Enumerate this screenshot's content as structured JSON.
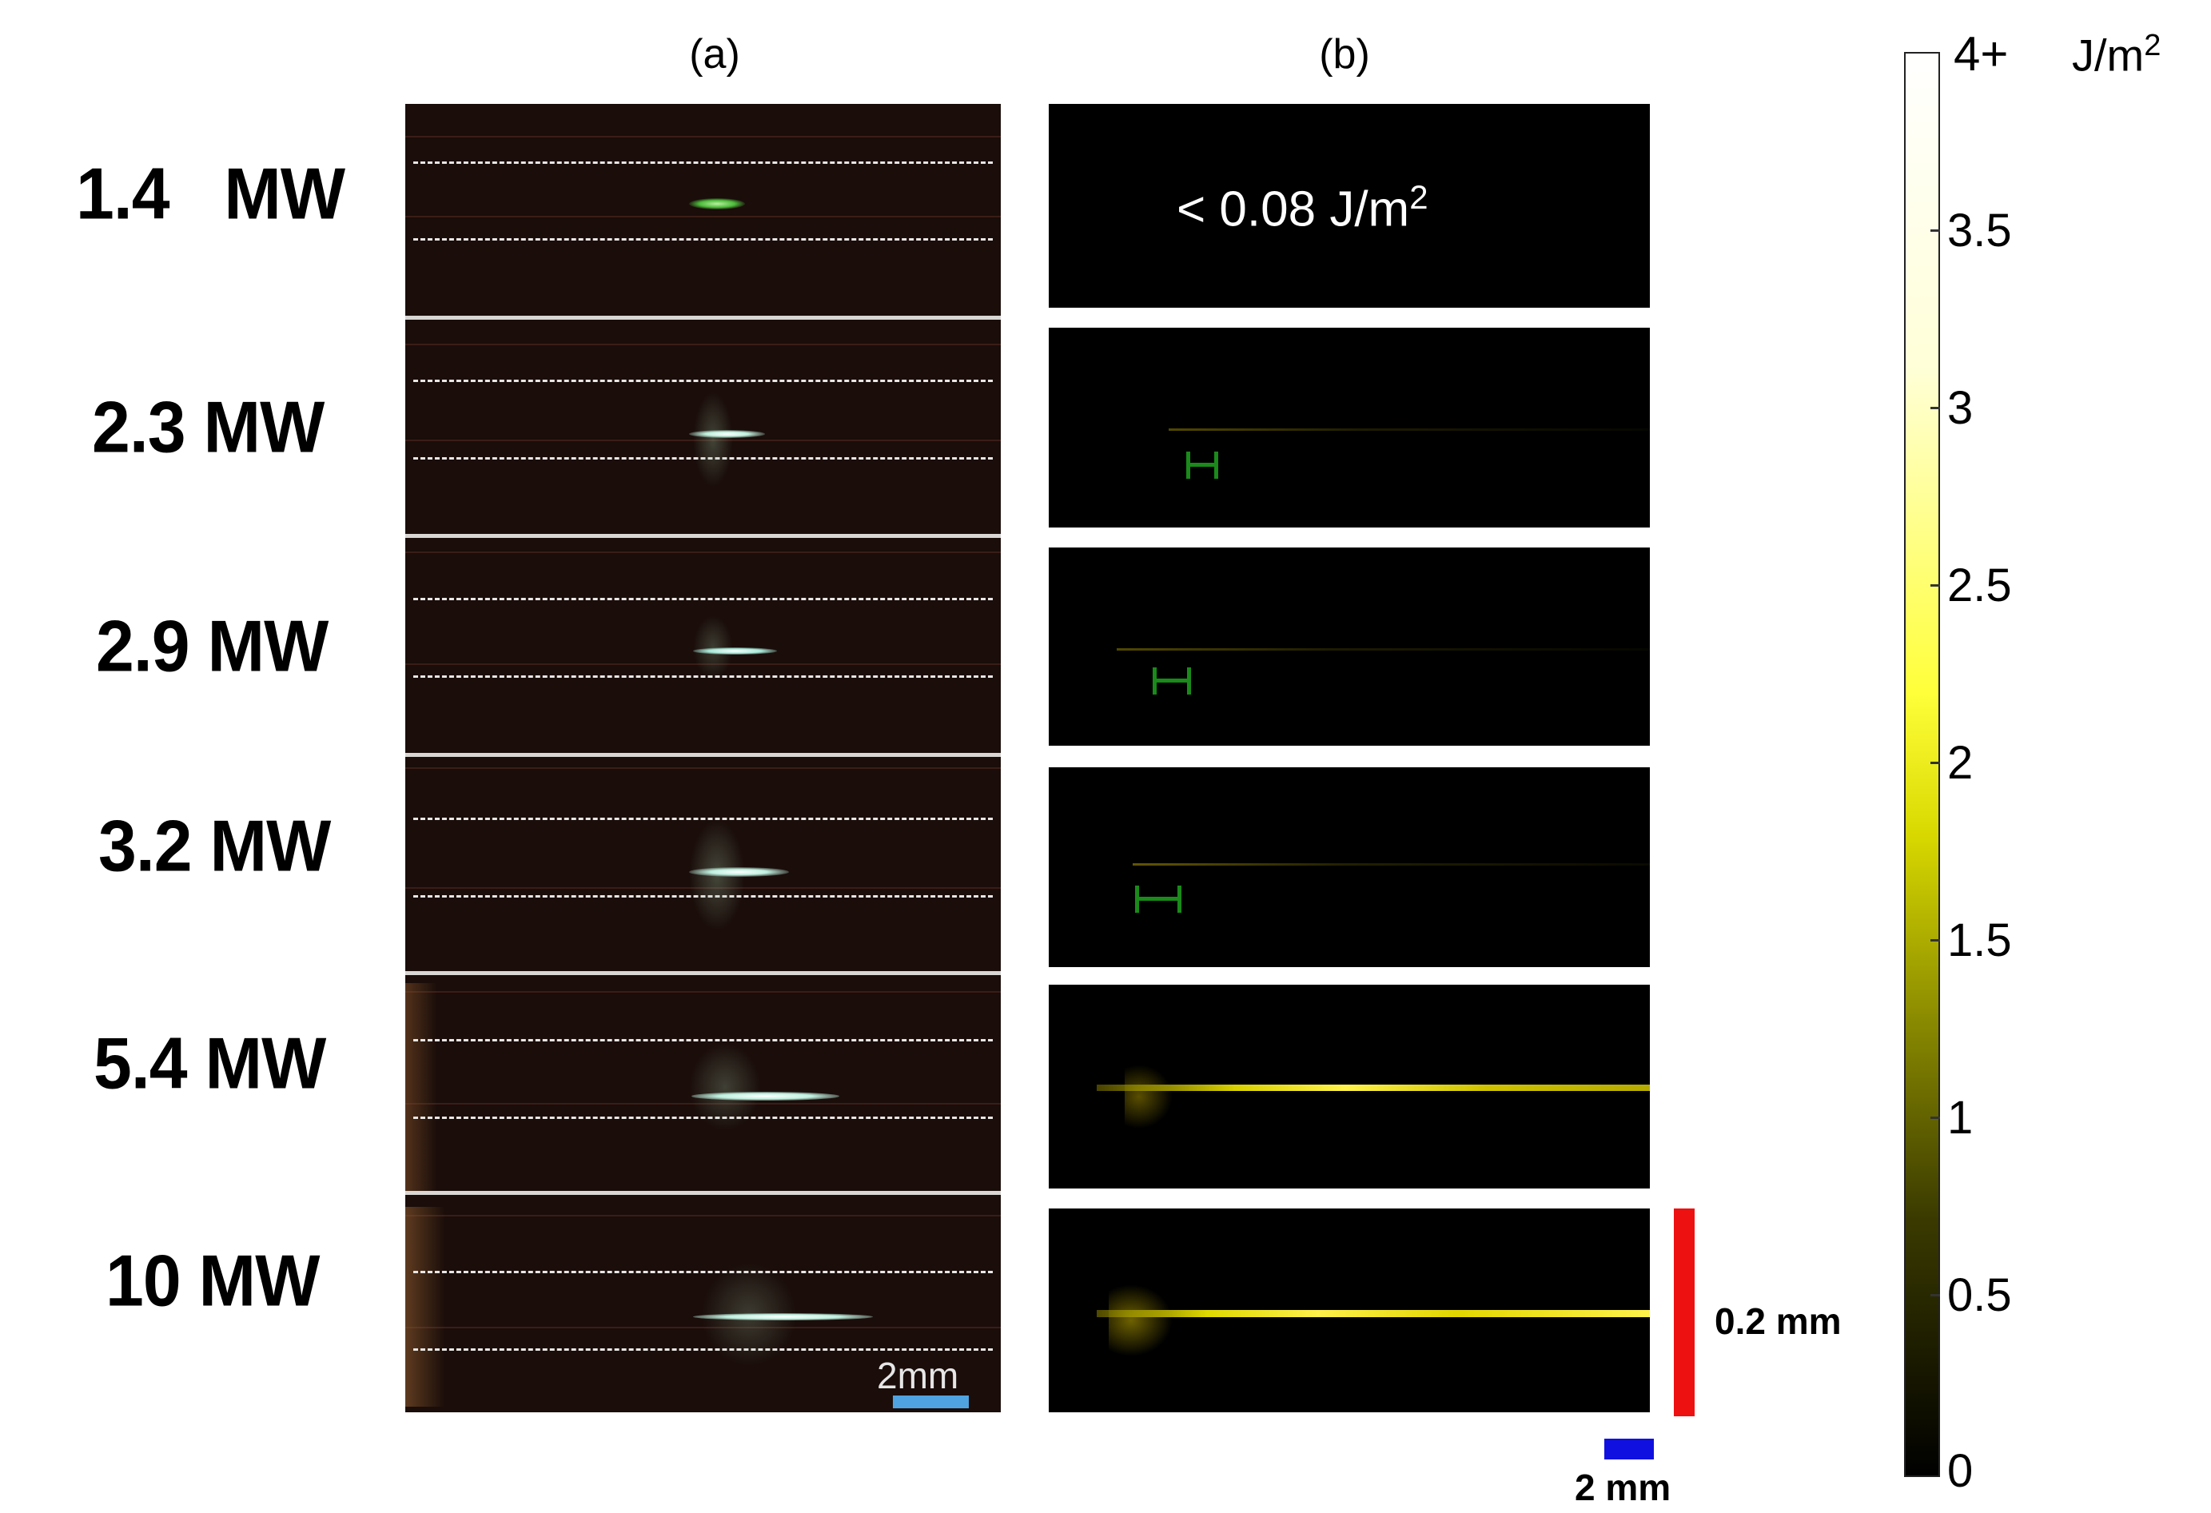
{
  "panel_labels": {
    "a": "(a)",
    "b": "(b)"
  },
  "power_levels": [
    "1.4   MW",
    "2.3 MW",
    "2.9 MW",
    "3.2 MW",
    "5.4 MW",
    "10 MW"
  ],
  "sim_annotation_first": "< 0.08 J/m",
  "sim_annotation_first_sup": "2",
  "photo_scale_label": "2mm",
  "sim_scale_horizontal_label": "2 mm",
  "sim_scale_vertical_label": "0.2 mm",
  "colorbar": {
    "unit": "J/m",
    "unit_sup": "2",
    "top_label": "4+",
    "tick_labels": [
      "3.5",
      "3",
      "2.5",
      "2",
      "1.5",
      "1",
      "0.5",
      "0"
    ],
    "range": [
      0,
      4
    ],
    "colormap": [
      "#000000",
      "#3a3a00",
      "#8a8a00",
      "#d8d800",
      "#ffff3a",
      "#ffffd8",
      "#ffffff"
    ]
  },
  "colors": {
    "photo_scale_bar": "#4fa3e0",
    "sim_scale_bar_h": "#1010e0",
    "sim_scale_bar_v": "#ee1111",
    "bracket": "#1a8a1a"
  }
}
